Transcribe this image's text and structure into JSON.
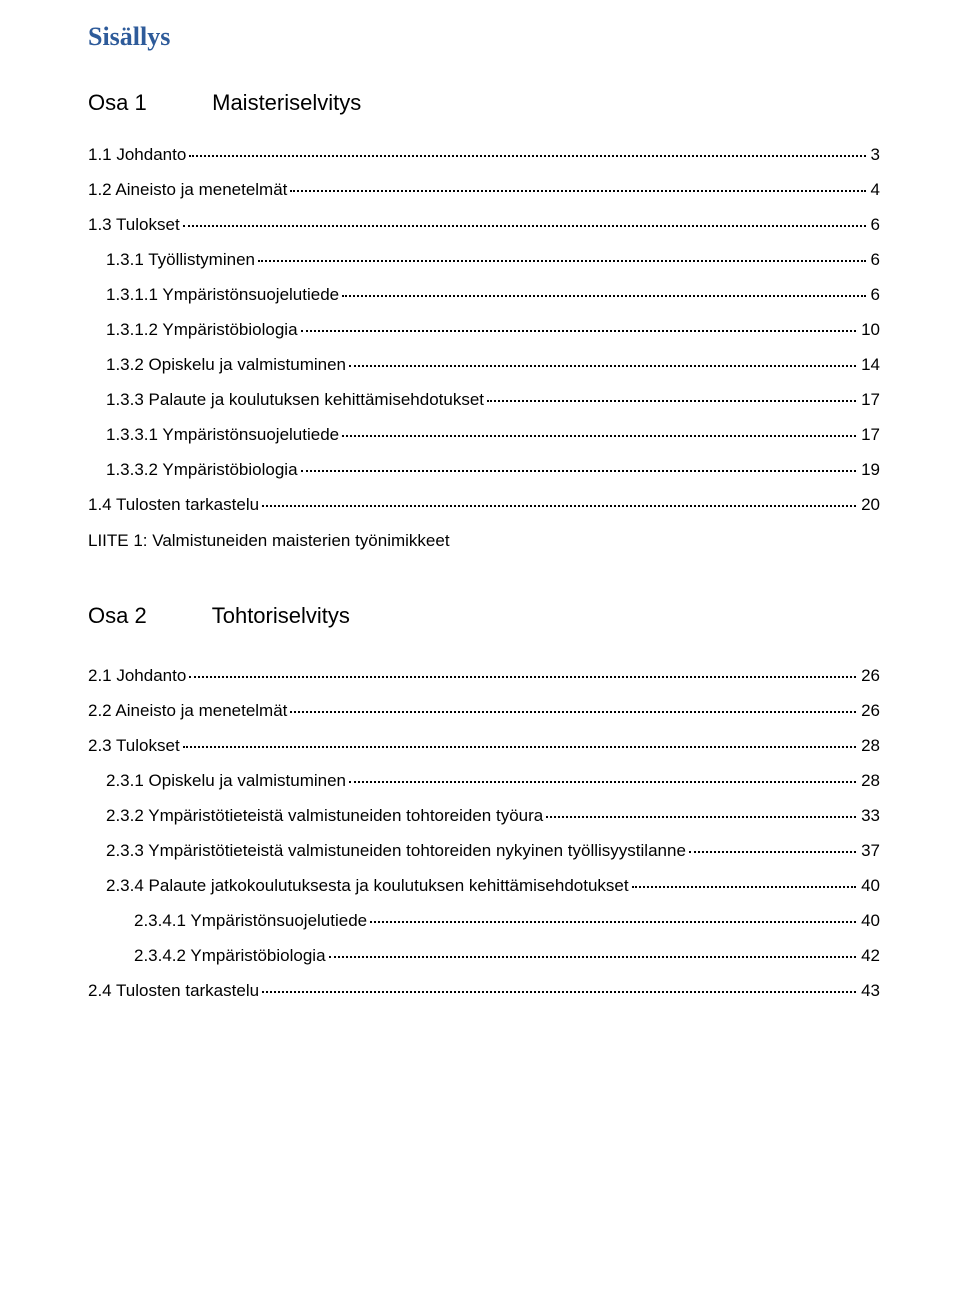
{
  "title": "Sisällys",
  "section1": {
    "num": "Osa 1",
    "title": "Maisteriselvitys"
  },
  "toc1": [
    {
      "indent": 0,
      "label": "1.1 Johdanto",
      "page": "3"
    },
    {
      "indent": 0,
      "label": "1.2 Aineisto ja menetelmät",
      "page": "4"
    },
    {
      "indent": 0,
      "label": "1.3 Tulokset",
      "page": "6"
    },
    {
      "indent": 1,
      "label": "1.3.1 Työllistyminen",
      "page": "6"
    },
    {
      "indent": 1,
      "label": "1.3.1.1 Ympäristönsuojelutiede",
      "page": "6"
    },
    {
      "indent": 1,
      "label": "1.3.1.2 Ympäristöbiologia",
      "page": "10"
    },
    {
      "indent": 1,
      "label": "1.3.2 Opiskelu ja valmistuminen",
      "page": "14"
    },
    {
      "indent": 1,
      "label": "1.3.3 Palaute ja koulutuksen kehittämisehdotukset",
      "page": "17"
    },
    {
      "indent": 1,
      "label": "1.3.3.1 Ympäristönsuojelutiede",
      "page": "17"
    },
    {
      "indent": 1,
      "label": "1.3.3.2 Ympäristöbiologia",
      "page": "19"
    },
    {
      "indent": 0,
      "label": "1.4 Tulosten tarkastelu",
      "page": "20"
    }
  ],
  "appendix": "LIITE 1: Valmistuneiden maisterien työnimikkeet",
  "section2": {
    "num": "Osa 2",
    "title": "Tohtoriselvitys"
  },
  "toc2": [
    {
      "indent": 0,
      "label": "2.1 Johdanto",
      "page": "26"
    },
    {
      "indent": 0,
      "label": "2.2 Aineisto ja menetelmät",
      "page": "26"
    },
    {
      "indent": 0,
      "label": "2.3 Tulokset",
      "page": "28"
    },
    {
      "indent": 1,
      "label": "2.3.1 Opiskelu ja valmistuminen",
      "page": "28"
    },
    {
      "indent": 1,
      "label": "2.3.2 Ympäristötieteistä valmistuneiden tohtoreiden työura",
      "page": "33"
    },
    {
      "indent": 1,
      "label": "2.3.3 Ympäristötieteistä valmistuneiden tohtoreiden nykyinen työllisyystilanne",
      "page": "37"
    },
    {
      "indent": 1,
      "label": "2.3.4 Palaute jatkokoulutuksesta ja koulutuksen kehittämisehdotukset",
      "page": "40"
    },
    {
      "indent": 2,
      "label": "2.3.4.1 Ympäristönsuojelutiede",
      "page": "40"
    },
    {
      "indent": 2,
      "label": "2.3.4.2 Ympäristöbiologia",
      "page": "42"
    },
    {
      "indent": 0,
      "label": "2.4 Tulosten tarkastelu",
      "page": "43"
    }
  ]
}
